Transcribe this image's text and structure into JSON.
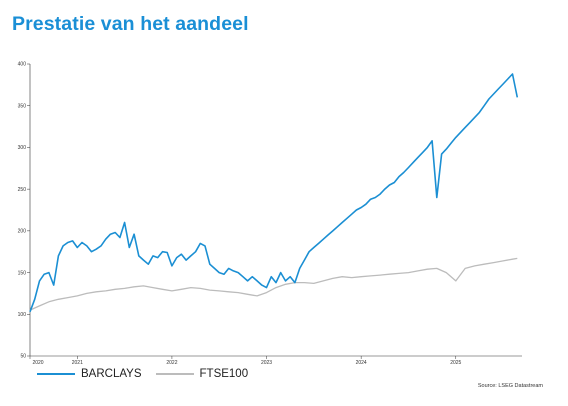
{
  "page": {
    "title": "Prestatie van het aandeel",
    "source": "Source: LSEG Datastream"
  },
  "colors": {
    "title": "#1a8fd6",
    "barclays": "#1b8fd3",
    "ftse100": "#bcbcbc",
    "axis": "#333333"
  },
  "chart_data": {
    "type": "line",
    "title": "",
    "xlabel": "",
    "ylabel": "",
    "ylim": [
      50,
      400
    ],
    "yticks": [
      50,
      100,
      150,
      200,
      250,
      300,
      350,
      400
    ],
    "xticks": [
      "2020",
      "2021",
      "2022",
      "2023",
      "2024",
      "2025"
    ],
    "xtick_positions": [
      2020.5,
      2021.0,
      2022.0,
      2023.0,
      2024.0,
      2025.0
    ],
    "xlim": [
      2020.5,
      2025.7
    ],
    "grid": false,
    "legend": "bottom-left",
    "series": [
      {
        "name": "BARCLAYS",
        "x": [
          2020.5,
          2020.55,
          2020.6,
          2020.65,
          2020.7,
          2020.75,
          2020.8,
          2020.85,
          2020.9,
          2020.95,
          2021.0,
          2021.05,
          2021.1,
          2021.15,
          2021.2,
          2021.25,
          2021.3,
          2021.35,
          2021.4,
          2021.45,
          2021.5,
          2021.55,
          2021.6,
          2021.65,
          2021.7,
          2021.75,
          2021.8,
          2021.85,
          2021.9,
          2021.95,
          2022.0,
          2022.05,
          2022.1,
          2022.15,
          2022.2,
          2022.25,
          2022.3,
          2022.35,
          2022.4,
          2022.45,
          2022.5,
          2022.55,
          2022.6,
          2022.65,
          2022.7,
          2022.75,
          2022.8,
          2022.85,
          2022.9,
          2022.95,
          2023.0,
          2023.05,
          2023.1,
          2023.15,
          2023.2,
          2023.25,
          2023.3,
          2023.35,
          2023.4,
          2023.45,
          2023.5,
          2023.55,
          2023.6,
          2023.65,
          2023.7,
          2023.75,
          2023.8,
          2023.85,
          2023.9,
          2023.95,
          2024.0,
          2024.05,
          2024.1,
          2024.15,
          2024.2,
          2024.25,
          2024.3,
          2024.35,
          2024.4,
          2024.45,
          2024.5,
          2024.55,
          2024.6,
          2024.65,
          2024.7,
          2024.75,
          2024.8,
          2024.85,
          2024.9,
          2024.95,
          2025.0,
          2025.05,
          2025.1,
          2025.15,
          2025.2,
          2025.25,
          2025.3,
          2025.35,
          2025.4,
          2025.45,
          2025.5,
          2025.55,
          2025.6,
          2025.65
        ],
        "values": [
          103,
          118,
          140,
          148,
          150,
          135,
          170,
          182,
          186,
          188,
          180,
          186,
          182,
          175,
          178,
          182,
          190,
          196,
          198,
          192,
          210,
          180,
          196,
          170,
          165,
          160,
          170,
          168,
          175,
          174,
          158,
          168,
          172,
          165,
          170,
          175,
          185,
          182,
          160,
          155,
          150,
          148,
          155,
          152,
          150,
          145,
          140,
          145,
          140,
          135,
          132,
          145,
          138,
          150,
          140,
          145,
          138,
          155,
          165,
          175,
          180,
          185,
          190,
          195,
          200,
          205,
          210,
          215,
          220,
          225,
          228,
          232,
          238,
          240,
          244,
          250,
          255,
          258,
          265,
          270,
          276,
          282,
          288,
          294,
          300,
          308,
          240,
          292,
          298,
          305,
          312,
          318,
          324,
          330,
          336,
          342,
          350,
          358,
          364,
          370,
          376,
          382,
          388,
          360
        ]
      },
      {
        "name": "FTSE100",
        "x": [
          2020.5,
          2020.6,
          2020.7,
          2020.8,
          2020.9,
          2021.0,
          2021.1,
          2021.2,
          2021.3,
          2021.4,
          2021.5,
          2021.6,
          2021.7,
          2021.8,
          2021.9,
          2022.0,
          2022.1,
          2022.2,
          2022.3,
          2022.4,
          2022.5,
          2022.6,
          2022.7,
          2022.8,
          2022.9,
          2023.0,
          2023.1,
          2023.2,
          2023.3,
          2023.4,
          2023.5,
          2023.6,
          2023.7,
          2023.8,
          2023.9,
          2024.0,
          2024.1,
          2024.2,
          2024.3,
          2024.4,
          2024.5,
          2024.6,
          2024.7,
          2024.8,
          2024.9,
          2025.0,
          2025.1,
          2025.2,
          2025.3,
          2025.4,
          2025.5,
          2025.6,
          2025.65
        ],
        "values": [
          105,
          110,
          115,
          118,
          120,
          122,
          125,
          127,
          128,
          130,
          131,
          133,
          134,
          132,
          130,
          128,
          130,
          132,
          131,
          129,
          128,
          127,
          126,
          124,
          122,
          126,
          132,
          136,
          138,
          138,
          137,
          140,
          143,
          145,
          144,
          145,
          146,
          147,
          148,
          149,
          150,
          152,
          154,
          155,
          150,
          140,
          155,
          158,
          160,
          162,
          164,
          166,
          167
        ]
      }
    ]
  }
}
